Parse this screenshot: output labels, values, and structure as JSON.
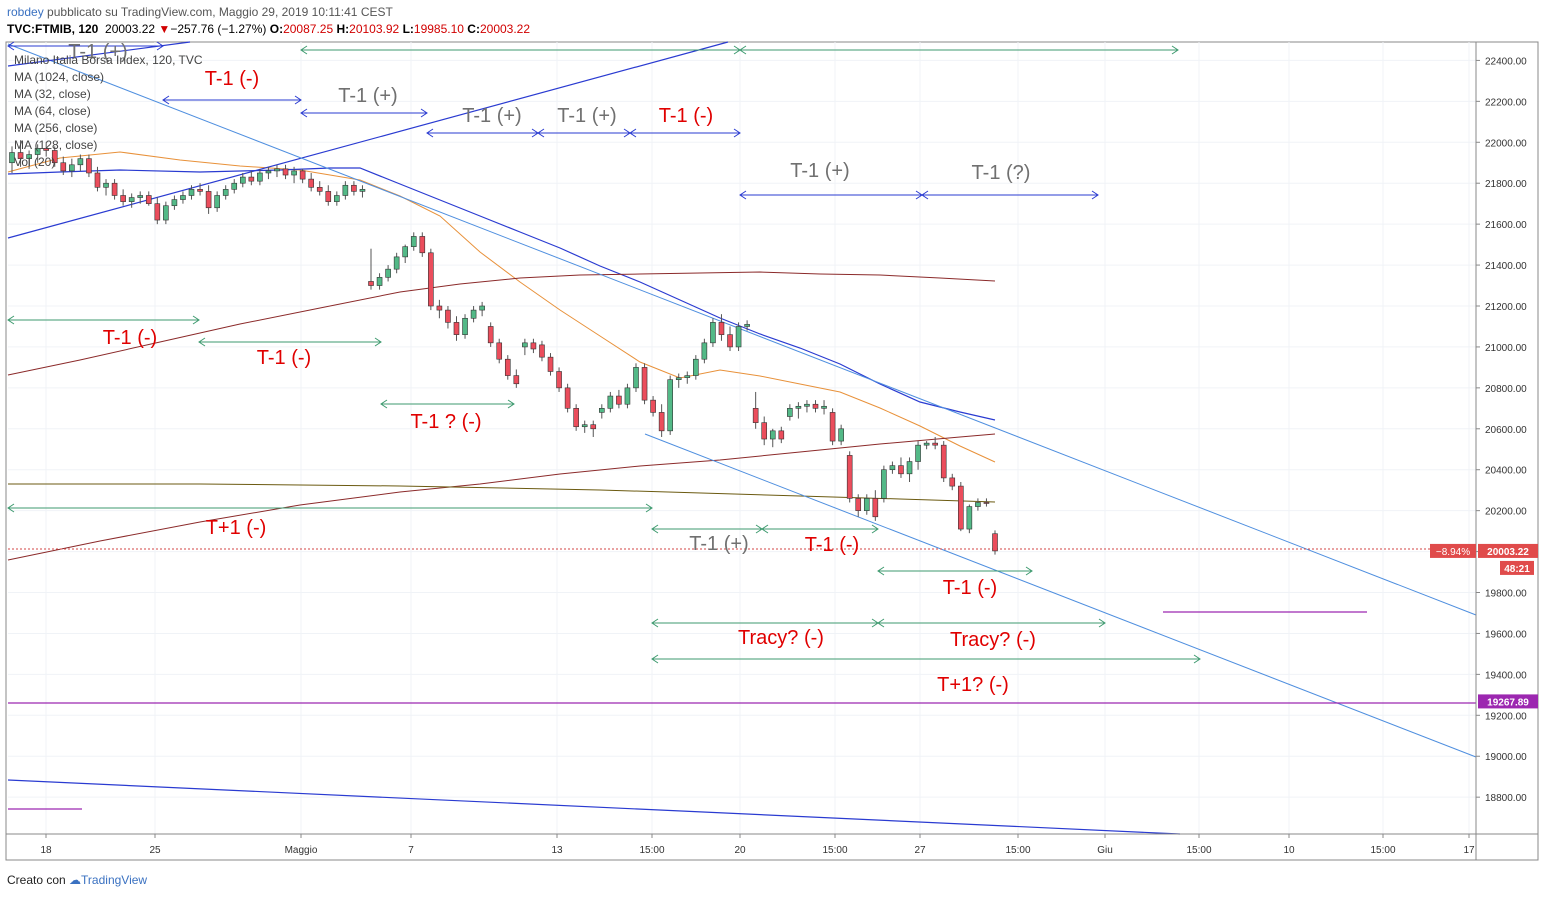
{
  "header": {
    "author": "robdey",
    "publisher_text": "pubblicato su TradingView.com, Maggio 29, 2019 10:11:41 CEST",
    "symbol": "TVC:FTMIB, 120",
    "last": "20003.22",
    "change_arrow": "▼",
    "change": "−257.76 (−1.27%)",
    "o_label": "O:",
    "o_value": "20087.25",
    "h_label": "H:",
    "h_value": "20103.92",
    "l_label": "L:",
    "l_value": "19985.10",
    "c_label": "C:",
    "c_value": "20003.22"
  },
  "legend": [
    "Milano Italia Borsa Index, 120, TVC",
    "MA (1024, close)",
    "MA (32, close)",
    "MA (64, close)",
    "MA (256, close)",
    "MA (128, close)",
    "Vol (20)"
  ],
  "footer": {
    "created_with": "Creato con",
    "brand": "TradingView"
  },
  "colors": {
    "bull": "#53b987",
    "bear": "#eb4d5c",
    "annotation_red": "#e00000",
    "annotation_gray": "#707070",
    "arrow_blue": "#2a3bd1",
    "arrow_green": "#3e9a6f",
    "ma_orange": "#e8913a",
    "ma_blue": "#2a3bd1",
    "ma_maroon": "#8b2a2a",
    "ma_olive": "#6b5a10",
    "trendline": "#4f8fdf",
    "purple": "#9c27b0"
  },
  "chart_data": {
    "type": "candlestick",
    "ylim": [
      18620,
      22490
    ],
    "y_ticks": [
      18800,
      19000,
      19200,
      19400,
      19600,
      19800,
      20000,
      20200,
      20400,
      20600,
      20800,
      21000,
      21200,
      21400,
      21600,
      21800,
      22000,
      22200,
      22400
    ],
    "y_tick_labels": [
      "18800.00",
      "19000.00",
      "19200.00",
      "19400.00",
      "19600.00",
      "19800.00",
      "20000.00",
      "20200.00",
      "20400.00",
      "20600.00",
      "20800.00",
      "21000.00",
      "21200.00",
      "21400.00",
      "21600.00",
      "21800.00",
      "22000.00",
      "22200.00",
      "22400.00"
    ],
    "x_tick_labels": [
      "18",
      "25",
      "Maggio",
      "7",
      "13",
      "15:00",
      "20",
      "15:00",
      "27",
      "15:00",
      "Giu",
      "15:00",
      "10",
      "15:00",
      "17"
    ],
    "price_badge": {
      "value": "20003.22",
      "change": "−8.94%",
      "countdown": "48:21"
    },
    "level_badge": {
      "value": "19267.89"
    },
    "candles": [
      [
        21900,
        21980,
        21850,
        21950
      ],
      [
        21950,
        22010,
        21880,
        21920
      ],
      [
        21920,
        21960,
        21870,
        21940
      ],
      [
        21940,
        21990,
        21900,
        21970
      ],
      [
        21970,
        22000,
        21930,
        21960
      ],
      [
        21960,
        21980,
        21880,
        21900
      ],
      [
        21900,
        21930,
        21840,
        21860
      ],
      [
        21860,
        21920,
        21830,
        21890
      ],
      [
        21890,
        21940,
        21860,
        21920
      ],
      [
        21920,
        21940,
        21830,
        21850
      ],
      [
        21850,
        21880,
        21760,
        21780
      ],
      [
        21780,
        21820,
        21740,
        21800
      ],
      [
        21800,
        21820,
        21720,
        21740
      ],
      [
        21740,
        21770,
        21690,
        21710
      ],
      [
        21710,
        21750,
        21680,
        21730
      ],
      [
        21730,
        21760,
        21700,
        21740
      ],
      [
        21740,
        21760,
        21690,
        21700
      ],
      [
        21700,
        21730,
        21600,
        21620
      ],
      [
        21620,
        21710,
        21600,
        21690
      ],
      [
        21690,
        21740,
        21670,
        21720
      ],
      [
        21720,
        21760,
        21700,
        21740
      ],
      [
        21740,
        21790,
        21720,
        21770
      ],
      [
        21770,
        21800,
        21740,
        21760
      ],
      [
        21760,
        21790,
        21650,
        21680
      ],
      [
        21680,
        21760,
        21660,
        21740
      ],
      [
        21740,
        21790,
        21720,
        21770
      ],
      [
        21770,
        21820,
        21750,
        21800
      ],
      [
        21800,
        21850,
        21780,
        21830
      ],
      [
        21830,
        21860,
        21790,
        21810
      ],
      [
        21810,
        21870,
        21790,
        21850
      ],
      [
        21850,
        21880,
        21820,
        21860
      ],
      [
        21860,
        21890,
        21830,
        21870
      ],
      [
        21870,
        21890,
        21820,
        21840
      ],
      [
        21840,
        21880,
        21800,
        21860
      ],
      [
        21860,
        21870,
        21800,
        21820
      ],
      [
        21820,
        21850,
        21760,
        21780
      ],
      [
        21780,
        21810,
        21740,
        21760
      ],
      [
        21760,
        21790,
        21690,
        21710
      ],
      [
        21710,
        21760,
        21690,
        21740
      ],
      [
        21740,
        21810,
        21720,
        21790
      ],
      [
        21790,
        21810,
        21740,
        21760
      ],
      [
        21760,
        21790,
        21730,
        21770
      ],
      [
        21320,
        21480,
        21280,
        21300
      ],
      [
        21300,
        21360,
        21280,
        21340
      ],
      [
        21340,
        21400,
        21320,
        21380
      ],
      [
        21380,
        21460,
        21360,
        21440
      ],
      [
        21440,
        21500,
        21410,
        21490
      ],
      [
        21490,
        21560,
        21470,
        21540
      ],
      [
        21540,
        21560,
        21440,
        21460
      ],
      [
        21460,
        21480,
        21180,
        21200
      ],
      [
        21200,
        21230,
        21140,
        21180
      ],
      [
        21180,
        21200,
        21090,
        21120
      ],
      [
        21120,
        21150,
        21030,
        21060
      ],
      [
        21060,
        21160,
        21040,
        21140
      ],
      [
        21140,
        21200,
        21120,
        21180
      ],
      [
        21180,
        21220,
        21150,
        21200
      ],
      [
        21100,
        21120,
        21000,
        21020
      ],
      [
        21020,
        21040,
        20920,
        20940
      ],
      [
        20940,
        20960,
        20840,
        20860
      ],
      [
        20860,
        20890,
        20800,
        20820
      ],
      [
        21000,
        21040,
        20960,
        21020
      ],
      [
        21020,
        21040,
        20970,
        20990
      ],
      [
        21010,
        21030,
        20930,
        20950
      ],
      [
        20950,
        20970,
        20860,
        20880
      ],
      [
        20880,
        20900,
        20780,
        20800
      ],
      [
        20800,
        20820,
        20680,
        20700
      ],
      [
        20700,
        20720,
        20590,
        20610
      ],
      [
        20610,
        20640,
        20580,
        20620
      ],
      [
        20620,
        20640,
        20560,
        20600
      ],
      [
        20680,
        20720,
        20650,
        20700
      ],
      [
        20700,
        20780,
        20680,
        20760
      ],
      [
        20760,
        20790,
        20700,
        20720
      ],
      [
        20720,
        20820,
        20700,
        20800
      ],
      [
        20800,
        20920,
        20780,
        20900
      ],
      [
        20900,
        20920,
        20720,
        20740
      ],
      [
        20740,
        20760,
        20660,
        20680
      ],
      [
        20680,
        20720,
        20560,
        20590
      ],
      [
        20590,
        20860,
        20570,
        20840
      ],
      [
        20840,
        20870,
        20800,
        20850
      ],
      [
        20850,
        20880,
        20820,
        20860
      ],
      [
        20860,
        20960,
        20840,
        20940
      ],
      [
        20940,
        21040,
        20920,
        21020
      ],
      [
        21020,
        21140,
        21000,
        21120
      ],
      [
        21120,
        21160,
        21030,
        21060
      ],
      [
        21060,
        21100,
        20980,
        21000
      ],
      [
        21000,
        21120,
        20980,
        21100
      ],
      [
        21100,
        21130,
        21080,
        21110
      ],
      [
        20700,
        20780,
        20600,
        20630
      ],
      [
        20630,
        20660,
        20520,
        20550
      ],
      [
        20550,
        20600,
        20510,
        20590
      ],
      [
        20590,
        20610,
        20530,
        20550
      ],
      [
        20660,
        20720,
        20640,
        20700
      ],
      [
        20700,
        20730,
        20650,
        20710
      ],
      [
        20710,
        20740,
        20680,
        20720
      ],
      [
        20720,
        20740,
        20680,
        20700
      ],
      [
        20700,
        20740,
        20670,
        20710
      ],
      [
        20680,
        20700,
        20520,
        20540
      ],
      [
        20540,
        20620,
        20520,
        20600
      ],
      [
        20470,
        20490,
        20240,
        20260
      ],
      [
        20260,
        20280,
        20170,
        20200
      ],
      [
        20200,
        20280,
        20180,
        20260
      ],
      [
        20260,
        20300,
        20150,
        20170
      ],
      [
        20260,
        20420,
        20240,
        20400
      ],
      [
        20400,
        20440,
        20380,
        20420
      ],
      [
        20420,
        20460,
        20360,
        20380
      ],
      [
        20380,
        20460,
        20340,
        20440
      ],
      [
        20440,
        20540,
        20400,
        20520
      ],
      [
        20520,
        20540,
        20500,
        20530
      ],
      [
        20530,
        20560,
        20500,
        20520
      ],
      [
        20520,
        20540,
        20340,
        20360
      ],
      [
        20360,
        20380,
        20300,
        20320
      ],
      [
        20320,
        20340,
        20100,
        20110
      ],
      [
        20110,
        20230,
        20090,
        20220
      ],
      [
        20220,
        20260,
        20200,
        20240
      ],
      [
        20240,
        20260,
        20220,
        20235
      ],
      [
        20087.25,
        20103.92,
        19985.1,
        20003.22
      ]
    ],
    "annotations": [
      {
        "text": "T-1 (+)",
        "color": "gray"
      },
      {
        "text": "T-1 (-)",
        "color": "red"
      },
      {
        "text": "T-1 (+)",
        "color": "gray"
      },
      {
        "text": "T-1 (+)",
        "color": "gray"
      },
      {
        "text": "T-1 (+)",
        "color": "gray"
      },
      {
        "text": "T-1 (-)",
        "color": "red"
      },
      {
        "text": "T-1 (+)",
        "color": "gray"
      },
      {
        "text": "T-1 (?)",
        "color": "gray"
      },
      {
        "text": "T-1 (-)",
        "color": "red"
      },
      {
        "text": "T-1 (-)",
        "color": "red"
      },
      {
        "text": "T-1 ? (-)",
        "color": "red"
      },
      {
        "text": "T+1 (-)",
        "color": "red"
      },
      {
        "text": "T-1 (+)",
        "color": "gray"
      },
      {
        "text": "T-1 (-)",
        "color": "red"
      },
      {
        "text": "T-1 (-)",
        "color": "red"
      },
      {
        "text": "Tracy? (-)",
        "color": "red"
      },
      {
        "text": "Tracy? (-)",
        "color": "red"
      },
      {
        "text": "T+1? (-)",
        "color": "red"
      }
    ]
  }
}
